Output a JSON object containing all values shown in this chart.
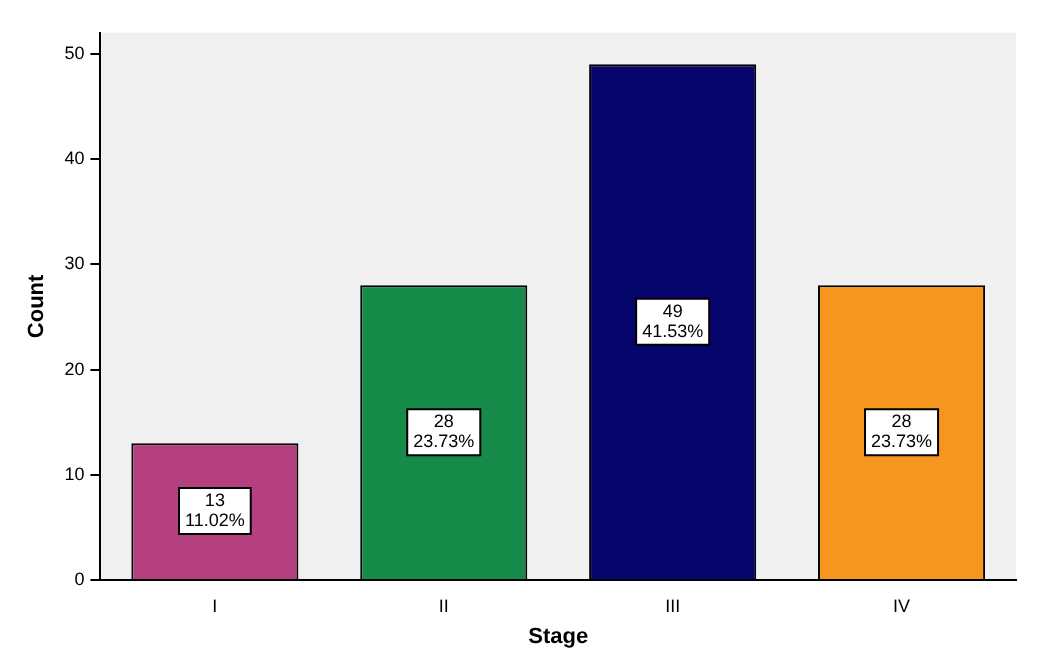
{
  "chart_data": {
    "type": "bar",
    "xlabel": "Stage",
    "ylabel": "Count",
    "categories": [
      "I",
      "II",
      "III",
      "IV"
    ],
    "values": [
      13,
      28,
      49,
      28
    ],
    "colors": [
      "#b5407f",
      "#168a48",
      "#05056b",
      "#f7961e"
    ],
    "value_labels": [
      "13\n11.02%",
      "28\n23.73%",
      "49\n41.53%",
      "28\n23.73%"
    ],
    "ylim": [
      0,
      52
    ],
    "yticks": [
      0,
      10,
      20,
      30,
      40,
      50
    ],
    "grid": false,
    "legend": false
  }
}
